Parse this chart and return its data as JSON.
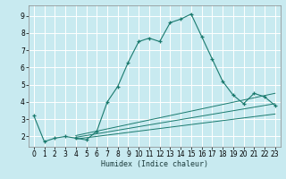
{
  "xlabel": "Humidex (Indice chaleur)",
  "bg_color": "#c8eaf0",
  "line_color": "#1a7a6e",
  "grid_color": "#ffffff",
  "ylim": [
    1.4,
    9.6
  ],
  "xlim": [
    -0.5,
    23.5
  ],
  "xticks": [
    0,
    1,
    2,
    3,
    4,
    5,
    6,
    7,
    8,
    9,
    10,
    11,
    12,
    13,
    14,
    15,
    16,
    17,
    18,
    19,
    20,
    21,
    22,
    23
  ],
  "yticks": [
    2,
    3,
    4,
    5,
    6,
    7,
    8,
    9
  ],
  "main_series": {
    "x": [
      0,
      1,
      2,
      3,
      4,
      5,
      6,
      7,
      8,
      9,
      10,
      11,
      12,
      13,
      14,
      15,
      16,
      17,
      18,
      19,
      20,
      21,
      22,
      23
    ],
    "y": [
      3.2,
      1.7,
      1.9,
      2.0,
      1.9,
      1.8,
      2.3,
      4.0,
      4.9,
      6.3,
      7.5,
      7.7,
      7.5,
      8.6,
      8.8,
      9.1,
      7.8,
      6.5,
      5.2,
      4.4,
      3.9,
      4.5,
      4.3,
      3.8
    ]
  },
  "flat_lines": [
    {
      "x": [
        4,
        23
      ],
      "y": [
        2.05,
        4.5
      ]
    },
    {
      "x": [
        4,
        23
      ],
      "y": [
        1.95,
        3.9
      ]
    },
    {
      "x": [
        4,
        23
      ],
      "y": [
        1.85,
        3.3
      ]
    }
  ],
  "xlabel_fontsize": 6.0,
  "tick_fontsize": 5.5
}
